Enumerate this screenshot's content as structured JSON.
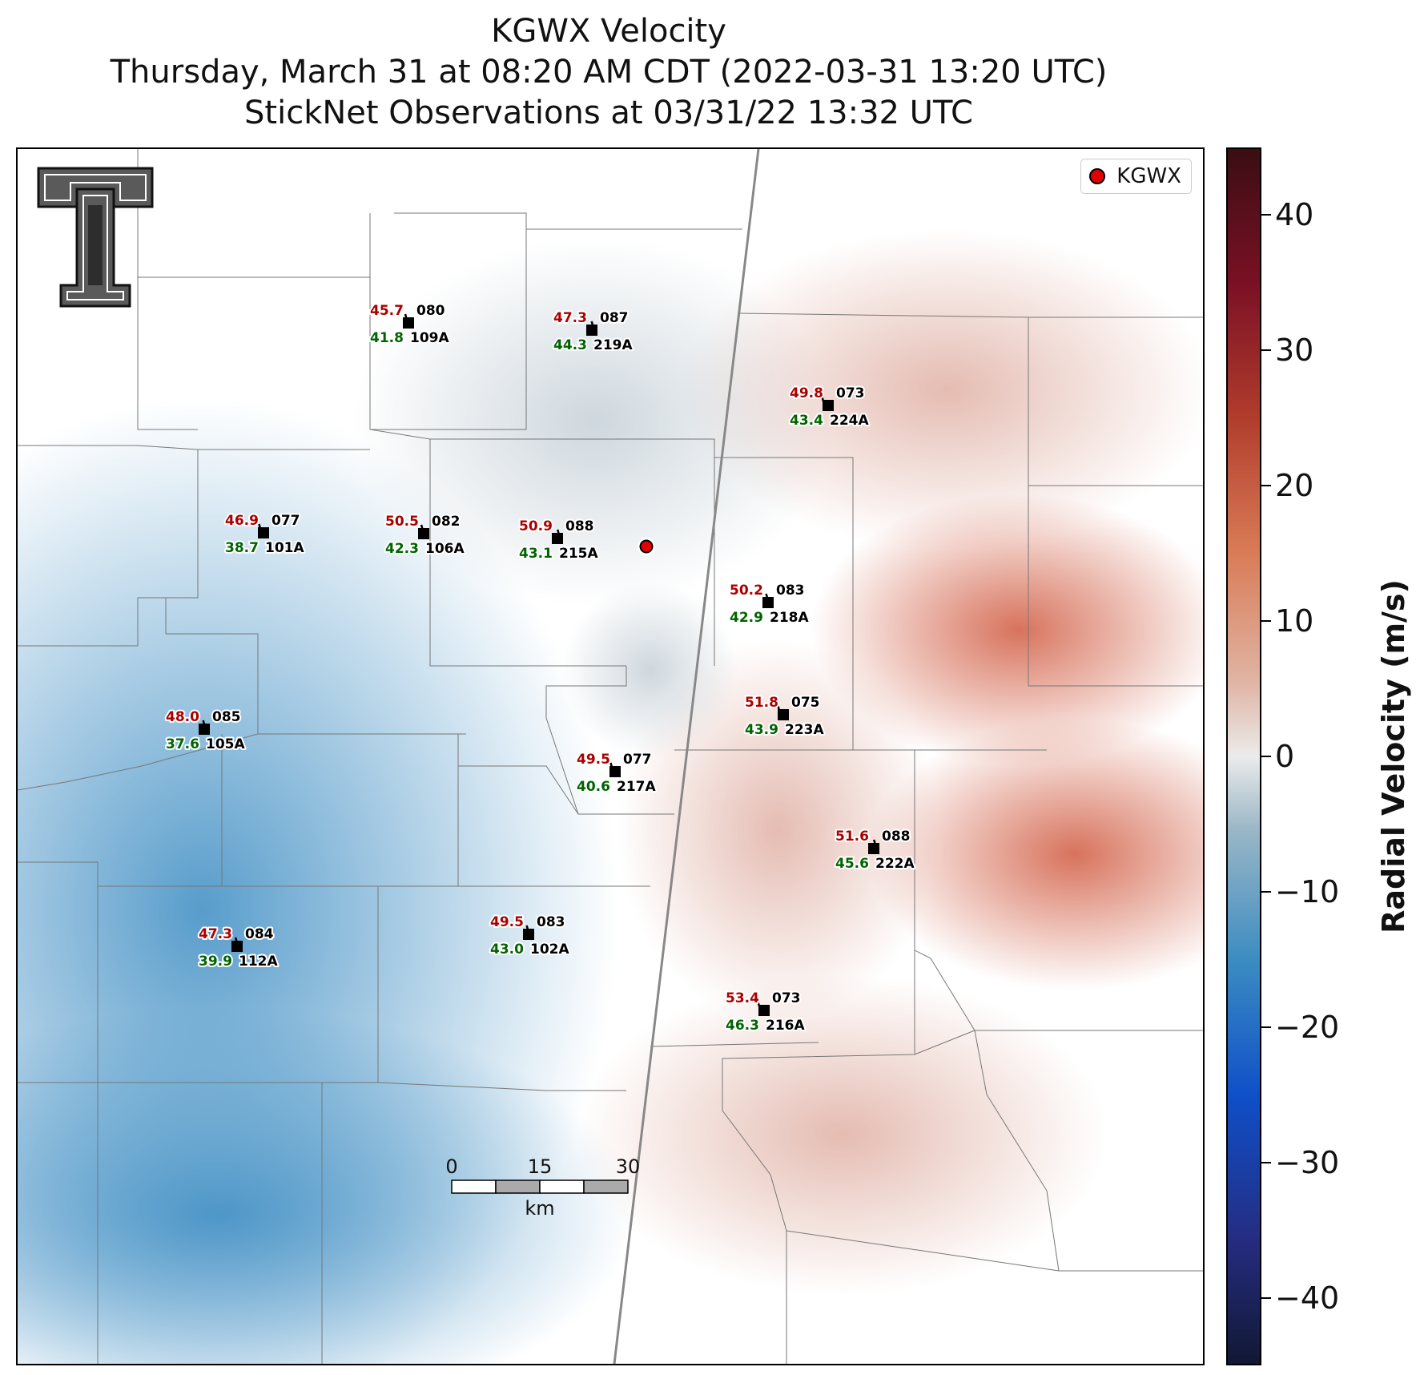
{
  "title": {
    "line1": "KGWX Velocity",
    "line2": "Thursday, March 31 at 08:20 AM CDT (2022-03-31 13:20 UTC)",
    "line3": "StickNet Observations at 03/31/22 13:32 UTC"
  },
  "legend": {
    "label": "KGWX",
    "marker_color": "#e00000"
  },
  "logo": {
    "icon": "texas-tech-double-t-logo"
  },
  "colorbar": {
    "label": "Radial Velocity (m/s)",
    "ticks": [
      "40",
      "30",
      "20",
      "10",
      "0",
      "−10",
      "−20",
      "−30",
      "−40"
    ],
    "range": [
      -45,
      45
    ],
    "colors": {
      "negative_max": "#111833",
      "zero": "#ebebeb",
      "positive_max": "#3a0e14"
    }
  },
  "scalebar": {
    "labels": [
      "0",
      "15",
      "30"
    ],
    "unit": "km"
  },
  "colors": {
    "temperature": "#aa0000",
    "dewpoint": "#006400",
    "station": "#000000"
  },
  "stations": [
    {
      "id": "109A",
      "temp": "45.7",
      "dew": "41.8",
      "dir": "080"
    },
    {
      "id": "219A",
      "temp": "47.3",
      "dew": "44.3",
      "dir": "087"
    },
    {
      "id": "224A",
      "temp": "49.8",
      "dew": "43.4",
      "dir": "073"
    },
    {
      "id": "101A",
      "temp": "46.9",
      "dew": "38.7",
      "dir": "077"
    },
    {
      "id": "106A",
      "temp": "50.5",
      "dew": "42.3",
      "dir": "082"
    },
    {
      "id": "215A",
      "temp": "50.9",
      "dew": "43.1",
      "dir": "088"
    },
    {
      "id": "218A",
      "temp": "50.2",
      "dew": "42.9",
      "dir": "083"
    },
    {
      "id": "223A",
      "temp": "51.8",
      "dew": "43.9",
      "dir": "075"
    },
    {
      "id": "105A",
      "temp": "48.0",
      "dew": "37.6",
      "dir": "085"
    },
    {
      "id": "217A",
      "temp": "49.5",
      "dew": "40.6",
      "dir": "077"
    },
    {
      "id": "222A",
      "temp": "51.6",
      "dew": "45.6",
      "dir": "088"
    },
    {
      "id": "102A",
      "temp": "49.5",
      "dew": "43.0",
      "dir": "083"
    },
    {
      "id": "112A",
      "temp": "47.3",
      "dew": "39.9",
      "dir": "084"
    },
    {
      "id": "216A",
      "temp": "53.4",
      "dew": "46.3",
      "dir": "073"
    }
  ]
}
